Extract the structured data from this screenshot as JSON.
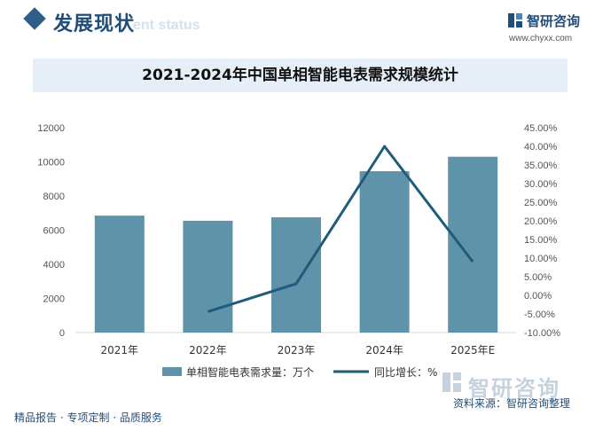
{
  "header": {
    "section_title": "发展现状",
    "section_subtitle": "ent status",
    "brand_name": "智研咨询",
    "brand_url": "www.chyxx.com"
  },
  "footer": {
    "left_text": "精品报告 · 专项定制 · 品质服务",
    "source_text": "资料来源：智研咨询整理",
    "watermark_text": "智研咨询"
  },
  "colors": {
    "bar": "#5f93aa",
    "line": "#1f5c7b",
    "accent": "#1f4e79"
  },
  "chart_data": {
    "type": "bar",
    "title": "2021-2024年中国单相智能电表需求规模统计",
    "categories": [
      "2021年",
      "2022年",
      "2023年",
      "2024年",
      "2025年E"
    ],
    "series": [
      {
        "name": "单相智能电表需求量：万个",
        "type": "bar",
        "axis": "left",
        "values": [
          6850,
          6550,
          6750,
          9450,
          10300
        ]
      },
      {
        "name": "同比增长：%",
        "type": "line",
        "axis": "right",
        "values": [
          null,
          -4.4,
          3.1,
          40.0,
          9.0
        ]
      }
    ],
    "y_left": {
      "min": 0,
      "max": 12000,
      "ticks": [
        "0",
        "2000",
        "4000",
        "6000",
        "8000",
        "10000",
        "12000"
      ]
    },
    "y_right": {
      "min": -10,
      "max": 45,
      "ticks": [
        "-10.00%",
        "-5.00%",
        "0.00%",
        "5.00%",
        "10.00%",
        "15.00%",
        "20.00%",
        "25.00%",
        "30.00%",
        "35.00%",
        "40.00%",
        "45.00%"
      ]
    },
    "legend_position": "bottom"
  }
}
